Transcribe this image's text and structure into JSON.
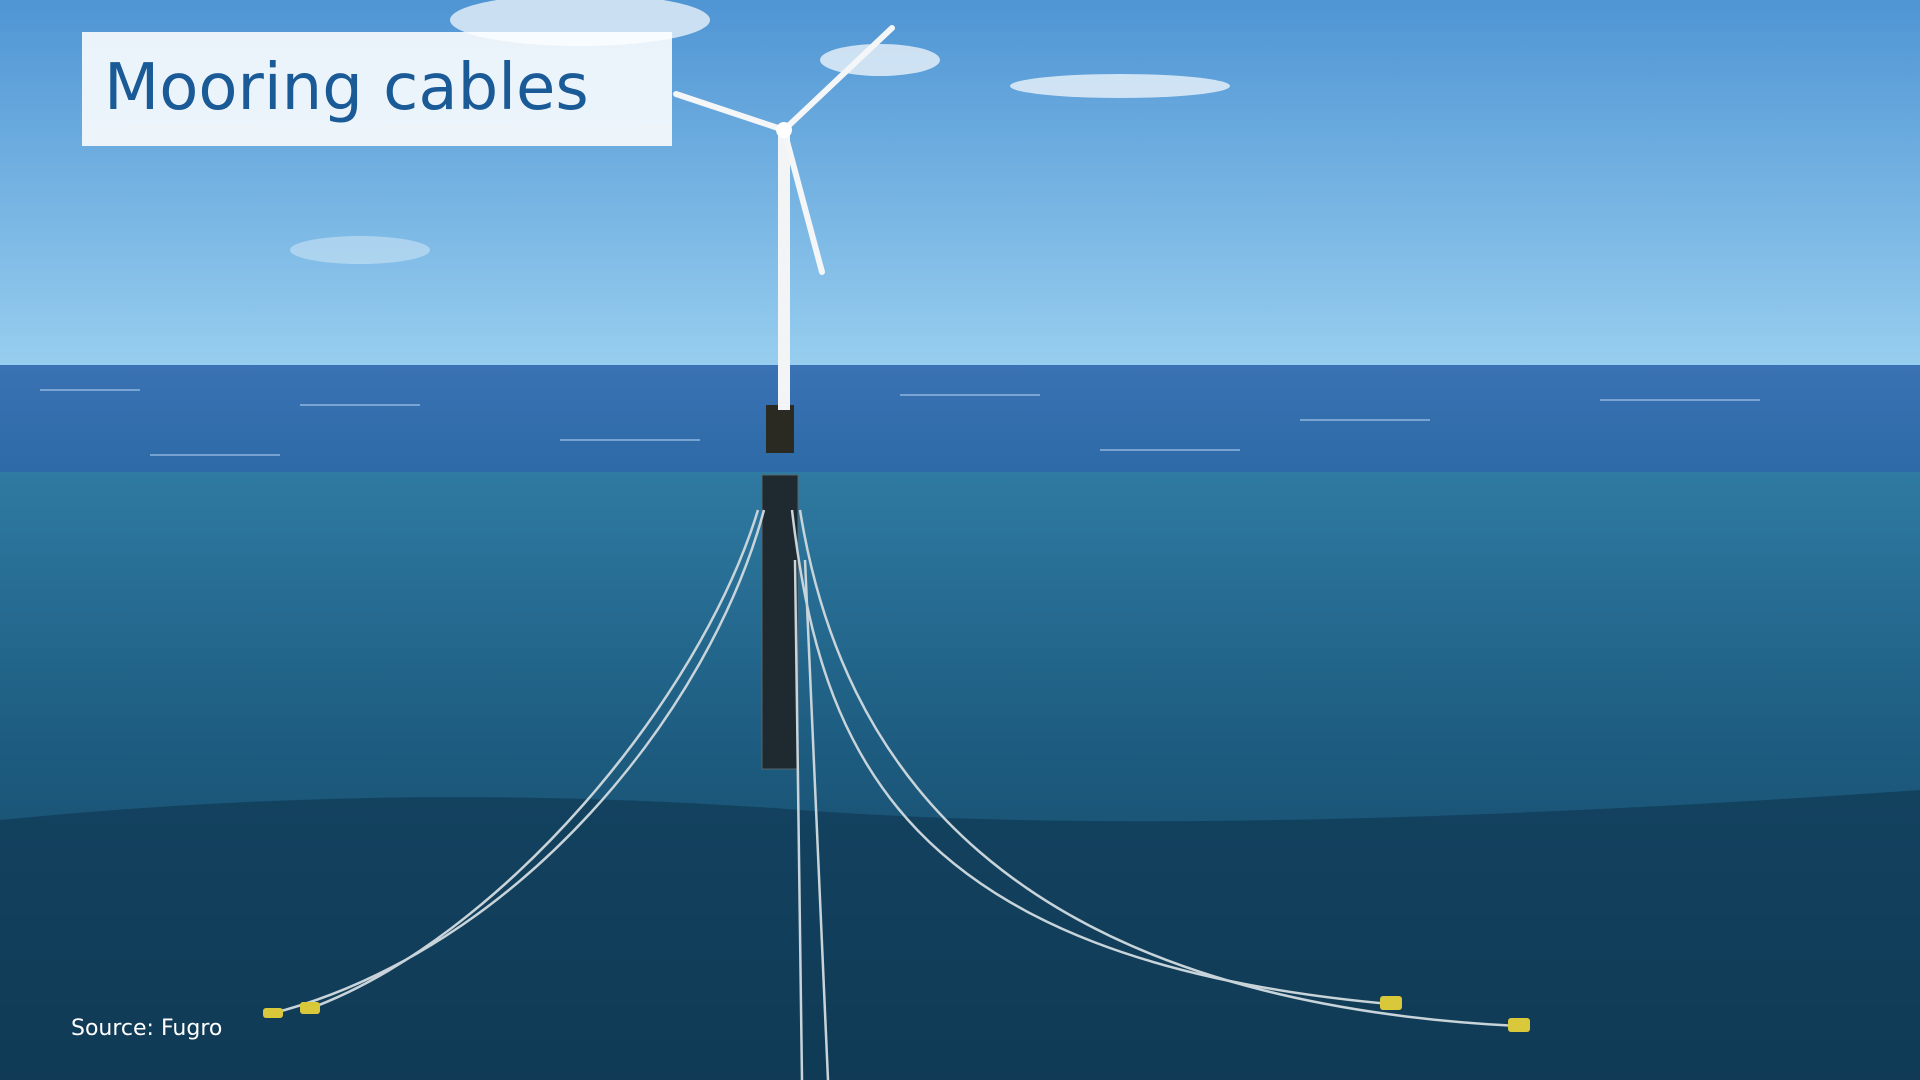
{
  "slide": {
    "title": "Mooring cables",
    "source": "Source: Fugro"
  }
}
